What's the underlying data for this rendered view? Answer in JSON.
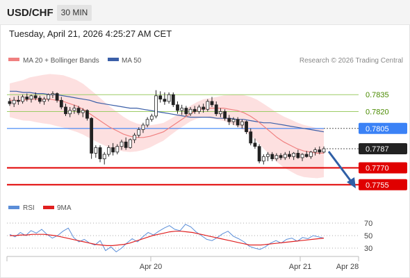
{
  "header": {
    "symbol": "USD/CHF",
    "timeframe": "30 MIN",
    "datetime": "Tuesday, April 21, 2026 4:25:27 AM CET"
  },
  "legend": {
    "ma20_label": "MA 20 + Bollinger Bands",
    "ma50_label": "MA 50",
    "credit": "Research © 2026 Trading Central"
  },
  "rsi_legend": {
    "rsi_label": "RSI",
    "ma_label": "9MA"
  },
  "colors": {
    "ma20": "#f08080",
    "ma50": "#3b5fa8",
    "bollinger_fill": "#fde0e0",
    "resistance_green": "#9ccc65",
    "current_blue": "#3b82f6",
    "support_red": "#e00000",
    "candle_dark": "#222222",
    "candle_up_body": "#ffffff",
    "rsi_line": "#5b8ed8",
    "rsi_ma": "#e02020",
    "arrow": "#2f5fa6"
  },
  "chart_data": [
    {
      "type": "line",
      "title": "USD/CHF 30 MIN",
      "x_ticks": [
        "Apr 20",
        "Apr 21",
        "Apr 28"
      ],
      "ylim": [
        0.7745,
        0.7845
      ],
      "levels": [
        {
          "value": 0.7835,
          "label": "0.7835",
          "kind": "resistance"
        },
        {
          "value": 0.782,
          "label": "0.7820",
          "kind": "resistance"
        },
        {
          "value": 0.7805,
          "label": "0.7805",
          "kind": "pivot"
        },
        {
          "value": 0.7787,
          "label": "0.7787",
          "kind": "last"
        },
        {
          "value": 0.777,
          "label": "0.7770",
          "kind": "support"
        },
        {
          "value": 0.7755,
          "label": "0.7755",
          "kind": "support"
        }
      ],
      "candles": [
        [
          0.7829,
          0.7832,
          0.7825,
          0.7827
        ],
        [
          0.7827,
          0.7833,
          0.7824,
          0.783
        ],
        [
          0.783,
          0.7834,
          0.7826,
          0.7829
        ],
        [
          0.7829,
          0.7835,
          0.7827,
          0.7833
        ],
        [
          0.7833,
          0.7836,
          0.7829,
          0.7831
        ],
        [
          0.7831,
          0.7835,
          0.7828,
          0.7834
        ],
        [
          0.7834,
          0.7837,
          0.783,
          0.7832
        ],
        [
          0.7832,
          0.7834,
          0.7827,
          0.7829
        ],
        [
          0.7829,
          0.7833,
          0.7826,
          0.7831
        ],
        [
          0.7831,
          0.7836,
          0.7829,
          0.7835
        ],
        [
          0.7835,
          0.7838,
          0.7832,
          0.7836
        ],
        [
          0.7836,
          0.7837,
          0.7828,
          0.783
        ],
        [
          0.783,
          0.7833,
          0.7822,
          0.7824
        ],
        [
          0.7824,
          0.7827,
          0.7816,
          0.7818
        ],
        [
          0.7818,
          0.7824,
          0.7815,
          0.7821
        ],
        [
          0.7821,
          0.7826,
          0.7818,
          0.7823
        ],
        [
          0.7823,
          0.7825,
          0.7817,
          0.7819
        ],
        [
          0.7819,
          0.7823,
          0.7815,
          0.7821
        ],
        [
          0.7821,
          0.7822,
          0.7812,
          0.7814
        ],
        [
          0.7814,
          0.7815,
          0.7778,
          0.7783
        ],
        [
          0.7783,
          0.779,
          0.7779,
          0.7788
        ],
        [
          0.7788,
          0.779,
          0.7775,
          0.7778
        ],
        [
          0.7778,
          0.7784,
          0.7773,
          0.7782
        ],
        [
          0.7782,
          0.779,
          0.778,
          0.7788
        ],
        [
          0.7788,
          0.7792,
          0.7781,
          0.7784
        ],
        [
          0.7784,
          0.7791,
          0.7782,
          0.7789
        ],
        [
          0.7789,
          0.7795,
          0.7786,
          0.7793
        ],
        [
          0.7793,
          0.7797,
          0.7786,
          0.7788
        ],
        [
          0.7788,
          0.7796,
          0.7787,
          0.7795
        ],
        [
          0.7795,
          0.7801,
          0.7792,
          0.7799
        ],
        [
          0.7799,
          0.7806,
          0.7797,
          0.7804
        ],
        [
          0.7804,
          0.781,
          0.7801,
          0.7808
        ],
        [
          0.7808,
          0.7815,
          0.7806,
          0.7813
        ],
        [
          0.7813,
          0.7818,
          0.7811,
          0.7816
        ],
        [
          0.7816,
          0.7839,
          0.7814,
          0.7834
        ],
        [
          0.7834,
          0.7838,
          0.7828,
          0.7831
        ],
        [
          0.7831,
          0.7837,
          0.7826,
          0.7829
        ],
        [
          0.7829,
          0.7837,
          0.7827,
          0.7835
        ],
        [
          0.7835,
          0.7837,
          0.7824,
          0.7826
        ],
        [
          0.7826,
          0.7829,
          0.7818,
          0.7821
        ],
        [
          0.7821,
          0.7826,
          0.7817,
          0.7823
        ],
        [
          0.7823,
          0.7825,
          0.7816,
          0.7818
        ],
        [
          0.7818,
          0.7824,
          0.7816,
          0.7822
        ],
        [
          0.7822,
          0.7825,
          0.7818,
          0.782
        ],
        [
          0.782,
          0.7826,
          0.7818,
          0.7824
        ],
        [
          0.7824,
          0.7827,
          0.7819,
          0.7822
        ],
        [
          0.7822,
          0.7831,
          0.782,
          0.7829
        ],
        [
          0.7829,
          0.7833,
          0.7824,
          0.7826
        ],
        [
          0.7826,
          0.7829,
          0.7816,
          0.7818
        ],
        [
          0.7818,
          0.7823,
          0.7815,
          0.782
        ],
        [
          0.782,
          0.7822,
          0.7812,
          0.7814
        ],
        [
          0.7814,
          0.7817,
          0.7808,
          0.7811
        ],
        [
          0.7811,
          0.7815,
          0.7808,
          0.7813
        ],
        [
          0.7813,
          0.7815,
          0.7806,
          0.7808
        ],
        [
          0.7808,
          0.7813,
          0.7805,
          0.7811
        ],
        [
          0.7811,
          0.7812,
          0.78,
          0.7802
        ],
        [
          0.7802,
          0.7805,
          0.779,
          0.7792
        ],
        [
          0.7792,
          0.7796,
          0.7787,
          0.7789
        ],
        [
          0.7789,
          0.7791,
          0.7774,
          0.7776
        ],
        [
          0.7776,
          0.7782,
          0.7773,
          0.778
        ],
        [
          0.778,
          0.7784,
          0.7776,
          0.7782
        ],
        [
          0.7782,
          0.7784,
          0.7776,
          0.7778
        ],
        [
          0.7778,
          0.7783,
          0.7776,
          0.7781
        ],
        [
          0.7781,
          0.7783,
          0.7777,
          0.7779
        ],
        [
          0.7779,
          0.7784,
          0.7777,
          0.7782
        ],
        [
          0.7782,
          0.7785,
          0.7778,
          0.778
        ],
        [
          0.778,
          0.7784,
          0.7777,
          0.7783
        ],
        [
          0.7783,
          0.7786,
          0.7778,
          0.7779
        ],
        [
          0.7779,
          0.7783,
          0.7776,
          0.7782
        ],
        [
          0.7782,
          0.7785,
          0.7779,
          0.778
        ],
        [
          0.778,
          0.7785,
          0.7778,
          0.7784
        ],
        [
          0.7784,
          0.7788,
          0.7781,
          0.7786
        ],
        [
          0.7786,
          0.7789,
          0.7782,
          0.7784
        ],
        [
          0.7784,
          0.7789,
          0.7783,
          0.7787
        ]
      ],
      "series": [
        {
          "name": "MA 50",
          "values": [
            0.7838,
            0.7838,
            0.7837,
            0.7837,
            0.7836,
            0.7836,
            0.7835,
            0.7835,
            0.7834,
            0.7833,
            0.7832,
            0.7831,
            0.783,
            0.7828,
            0.7827,
            0.7826,
            0.7825,
            0.7824,
            0.7823,
            0.7823,
            0.7822,
            0.7821,
            0.782,
            0.7819,
            0.7818,
            0.7817,
            0.7816,
            0.7815,
            0.7815,
            0.7815,
            0.7815,
            0.7814,
            0.7814,
            0.7814,
            0.7813,
            0.7813,
            0.7812,
            0.7811,
            0.781,
            0.781,
            0.7809,
            0.7808,
            0.7807,
            0.7806,
            0.7805,
            0.7804,
            0.7803,
            0.7802
          ]
        },
        {
          "name": "MA 20 + Bollinger Bands",
          "values": [
            0.783,
            0.783,
            0.783,
            0.7831,
            0.7831,
            0.7831,
            0.7831,
            0.783,
            0.7829,
            0.7827,
            0.7825,
            0.7822,
            0.7818,
            0.7814,
            0.781,
            0.7806,
            0.7803,
            0.78,
            0.7798,
            0.7797,
            0.7797,
            0.7798,
            0.78,
            0.7802,
            0.7806,
            0.781,
            0.7814,
            0.7818,
            0.7821,
            0.7823,
            0.7823,
            0.7823,
            0.7823,
            0.7822,
            0.7821,
            0.7819,
            0.7816,
            0.7812,
            0.7807,
            0.7802,
            0.7797,
            0.7793,
            0.779,
            0.7787,
            0.7785,
            0.7784,
            0.7783,
            0.7783
          ]
        }
      ]
    },
    {
      "type": "line",
      "title": "RSI",
      "y_ticks": [
        70,
        50,
        30
      ],
      "ylim": [
        20,
        80
      ],
      "series": [
        {
          "name": "RSI",
          "values": [
            52,
            48,
            55,
            50,
            58,
            54,
            60,
            52,
            46,
            50,
            57,
            62,
            47,
            40,
            44,
            38,
            35,
            42,
            26,
            32,
            24,
            30,
            38,
            45,
            40,
            48,
            55,
            51,
            57,
            62,
            66,
            60,
            58,
            68,
            64,
            56,
            50,
            44,
            42,
            47,
            53,
            57,
            49,
            45,
            40,
            33,
            30,
            28,
            32,
            38,
            42,
            38,
            44,
            46,
            41,
            47,
            45,
            50,
            48,
            46
          ]
        },
        {
          "name": "9MA",
          "values": [
            50,
            50,
            51,
            51,
            52,
            52,
            52,
            51,
            50,
            48,
            46,
            44,
            42,
            40,
            38,
            36,
            35,
            34,
            34,
            35,
            36,
            38,
            41,
            44,
            47,
            50,
            52,
            54,
            56,
            57,
            57,
            56,
            55,
            53,
            51,
            49,
            47,
            45,
            43,
            41,
            39,
            37,
            35,
            35,
            35,
            36,
            37,
            38,
            39,
            40,
            41,
            42,
            43,
            44,
            45,
            46
          ]
        }
      ]
    }
  ]
}
